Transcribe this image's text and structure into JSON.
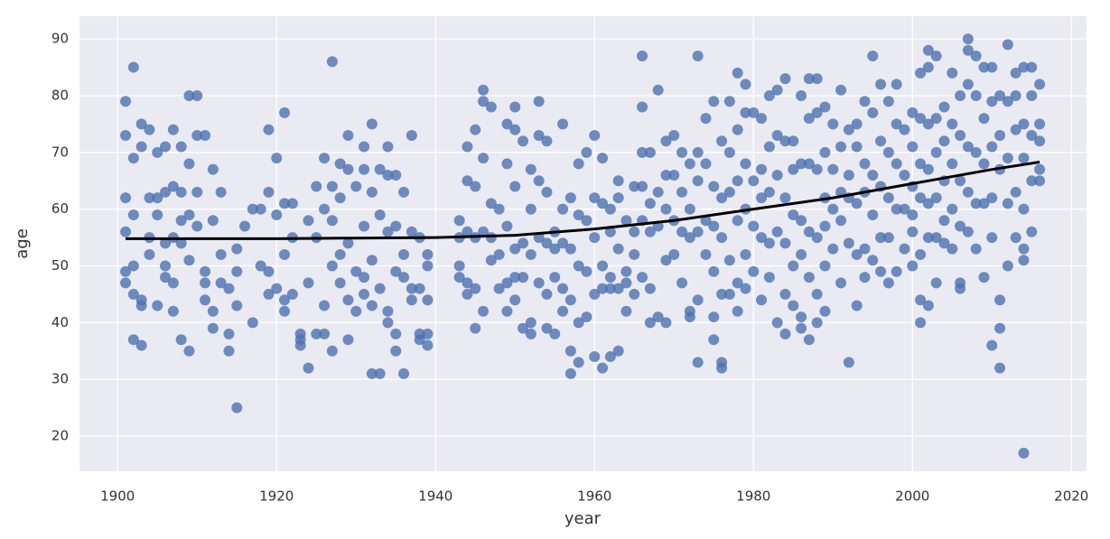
{
  "chart_data": {
    "type": "scatter",
    "x_label": "year",
    "y_label": "age",
    "xlim": [
      1895.2,
      2021.9
    ],
    "ylim": [
      13.8,
      94
    ],
    "xticks": [
      1900,
      1920,
      1940,
      1960,
      1980,
      2000,
      2020
    ],
    "yticks": [
      20,
      30,
      40,
      50,
      60,
      70,
      80,
      90
    ],
    "grid": true,
    "series": [
      {
        "type": "scatter",
        "color": "#4c72b0",
        "x": [
          1901,
          1901,
          1901,
          1901,
          1901,
          1901,
          1902,
          1902,
          1902,
          1902,
          1902,
          1902,
          1903,
          1903,
          1903,
          1903,
          1903,
          1904,
          1904,
          1904,
          1904,
          1905,
          1905,
          1905,
          1905,
          1906,
          1906,
          1906,
          1906,
          1906,
          1907,
          1907,
          1907,
          1907,
          1907,
          1908,
          1908,
          1908,
          1908,
          1908,
          1909,
          1909,
          1909,
          1909,
          1909,
          1910,
          1910,
          1910,
          1910,
          1911,
          1911,
          1911,
          1911,
          1912,
          1912,
          1912,
          1912,
          1913,
          1913,
          1913,
          1914,
          1914,
          1914,
          1915,
          1915,
          1915,
          1915,
          1916,
          1917,
          1917,
          1918,
          1918,
          1919,
          1919,
          1919,
          1919,
          1920,
          1920,
          1920,
          1921,
          1921,
          1921,
          1921,
          1921,
          1922,
          1922,
          1922,
          1923,
          1923,
          1923,
          1924,
          1924,
          1924,
          1925,
          1925,
          1925,
          1926,
          1926,
          1926,
          1926,
          1927,
          1927,
          1927,
          1927,
          1927,
          1928,
          1928,
          1928,
          1928,
          1929,
          1929,
          1929,
          1929,
          1929,
          1930,
          1930,
          1930,
          1931,
          1931,
          1931,
          1931,
          1931,
          1932,
          1932,
          1932,
          1932,
          1932,
          1933,
          1933,
          1933,
          1933,
          1934,
          1934,
          1934,
          1934,
          1934,
          1935,
          1935,
          1935,
          1935,
          1935,
          1936,
          1936,
          1936,
          1936,
          1937,
          1937,
          1937,
          1937,
          1938,
          1938,
          1938,
          1938,
          1939,
          1939,
          1939,
          1939,
          1939,
          1943,
          1943,
          1943,
          1943,
          1944,
          1944,
          1944,
          1944,
          1944,
          1945,
          1945,
          1945,
          1945,
          1945,
          1946,
          1946,
          1946,
          1946,
          1946,
          1947,
          1947,
          1947,
          1947,
          1948,
          1948,
          1948,
          1949,
          1949,
          1949,
          1949,
          1949,
          1950,
          1950,
          1950,
          1950,
          1950,
          1950,
          1951,
          1951,
          1951,
          1951,
          1952,
          1952,
          1952,
          1952,
          1952,
          1953,
          1953,
          1953,
          1953,
          1953,
          1954,
          1954,
          1954,
          1954,
          1954,
          1955,
          1955,
          1955,
          1955,
          1956,
          1956,
          1956,
          1956,
          1956,
          1957,
          1957,
          1957,
          1957,
          1957,
          1958,
          1958,
          1958,
          1958,
          1958,
          1959,
          1959,
          1959,
          1959,
          1960,
          1960,
          1960,
          1960,
          1960,
          1961,
          1961,
          1961,
          1961,
          1961,
          1962,
          1962,
          1962,
          1962,
          1962,
          1963,
          1963,
          1963,
          1963,
          1963,
          1964,
          1964,
          1964,
          1964,
          1965,
          1965,
          1965,
          1965,
          1966,
          1966,
          1966,
          1966,
          1966,
          1966,
          1967,
          1967,
          1967,
          1967,
          1967,
          1968,
          1968,
          1968,
          1968,
          1969,
          1969,
          1969,
          1969,
          1969,
          1970,
          1970,
          1970,
          1970,
          1971,
          1971,
          1971,
          1971,
          1972,
          1972,
          1972,
          1972,
          1972,
          1973,
          1973,
          1973,
          1973,
          1973,
          1973,
          1974,
          1974,
          1974,
          1974,
          1975,
          1975,
          1975,
          1975,
          1975,
          1975,
          1976,
          1976,
          1976,
          1976,
          1976,
          1976,
          1977,
          1977,
          1977,
          1977,
          1977,
          1978,
          1978,
          1978,
          1978,
          1978,
          1978,
          1979,
          1979,
          1979,
          1979,
          1979,
          1979,
          1980,
          1980,
          1980,
          1980,
          1981,
          1981,
          1981,
          1981,
          1981,
          1982,
          1982,
          1982,
          1982,
          1982,
          1983,
          1983,
          1983,
          1983,
          1983,
          1984,
          1984,
          1984,
          1984,
          1984,
          1984,
          1985,
          1985,
          1985,
          1985,
          1985,
          1986,
          1986,
          1986,
          1986,
          1986,
          1986,
          1987,
          1987,
          1987,
          1987,
          1987,
          1987,
          1988,
          1988,
          1988,
          1988,
          1988,
          1988,
          1989,
          1989,
          1989,
          1989,
          1989,
          1989,
          1990,
          1990,
          1990,
          1990,
          1991,
          1991,
          1991,
          1991,
          1991,
          1992,
          1992,
          1992,
          1992,
          1992,
          1993,
          1993,
          1993,
          1993,
          1993,
          1994,
          1994,
          1994,
          1994,
          1994,
          1995,
          1995,
          1995,
          1995,
          1995,
          1996,
          1996,
          1996,
          1996,
          1996,
          1997,
          1997,
          1997,
          1997,
          1997,
          1998,
          1998,
          1998,
          1998,
          1998,
          1999,
          1999,
          1999,
          1999,
          2000,
          2000,
          2000,
          2000,
          2000,
          2000,
          2001,
          2001,
          2001,
          2001,
          2001,
          2001,
          2001,
          2002,
          2002,
          2002,
          2002,
          2002,
          2002,
          2002,
          2003,
          2003,
          2003,
          2003,
          2003,
          2003,
          2004,
          2004,
          2004,
          2004,
          2004,
          2005,
          2005,
          2005,
          2005,
          2005,
          2006,
          2006,
          2006,
          2006,
          2006,
          2006,
          2007,
          2007,
          2007,
          2007,
          2007,
          2007,
          2008,
          2008,
          2008,
          2008,
          2008,
          2009,
          2009,
          2009,
          2009,
          2009,
          2010,
          2010,
          2010,
          2010,
          2010,
          2010,
          2011,
          2011,
          2011,
          2011,
          2011,
          2011,
          2012,
          2012,
          2012,
          2012,
          2012,
          2013,
          2013,
          2013,
          2013,
          2013,
          2014,
          2014,
          2014,
          2014,
          2014,
          2014,
          2014,
          2015,
          2015,
          2015,
          2015,
          2015,
          2016,
          2016,
          2016,
          2016,
          2016
        ],
        "values": [
          79,
          73,
          62,
          56,
          49,
          47,
          85,
          69,
          59,
          50,
          45,
          37,
          75,
          71,
          44,
          43,
          36,
          74,
          62,
          55,
          52,
          70,
          62,
          59,
          43,
          71,
          63,
          54,
          50,
          48,
          74,
          64,
          55,
          47,
          42,
          71,
          63,
          58,
          54,
          37,
          80,
          68,
          59,
          51,
          35,
          80,
          73,
          63,
          57,
          73,
          49,
          47,
          44,
          67,
          58,
          42,
          39,
          63,
          52,
          47,
          46,
          38,
          35,
          53,
          49,
          43,
          25,
          57,
          60,
          40,
          60,
          50,
          74,
          63,
          49,
          45,
          69,
          59,
          46,
          77,
          61,
          52,
          44,
          42,
          61,
          55,
          45,
          38,
          37,
          36,
          58,
          47,
          32,
          64,
          55,
          38,
          69,
          60,
          43,
          38,
          86,
          64,
          58,
          50,
          35,
          68,
          62,
          52,
          47,
          73,
          67,
          54,
          44,
          37,
          64,
          49,
          42,
          71,
          67,
          57,
          48,
          45,
          75,
          63,
          51,
          43,
          31,
          67,
          59,
          46,
          31,
          71,
          66,
          56,
          42,
          40,
          66,
          57,
          49,
          38,
          35,
          63,
          52,
          48,
          31,
          73,
          56,
          46,
          44,
          55,
          46,
          38,
          37,
          52,
          50,
          44,
          38,
          36,
          58,
          55,
          50,
          48,
          71,
          65,
          56,
          47,
          45,
          74,
          64,
          55,
          46,
          39,
          81,
          79,
          69,
          56,
          42,
          78,
          61,
          55,
          51,
          60,
          52,
          46,
          75,
          68,
          57,
          47,
          42,
          78,
          74,
          64,
          53,
          48,
          44,
          72,
          54,
          48,
          39,
          67,
          60,
          52,
          38,
          40,
          79,
          73,
          65,
          55,
          47,
          72,
          63,
          54,
          45,
          39,
          56,
          53,
          48,
          38,
          75,
          60,
          54,
          46,
          42,
          62,
          53,
          44,
          35,
          31,
          68,
          59,
          50,
          40,
          33,
          70,
          58,
          49,
          41,
          73,
          62,
          55,
          45,
          34,
          69,
          61,
          50,
          46,
          32,
          60,
          56,
          48,
          46,
          34,
          65,
          62,
          53,
          46,
          35,
          58,
          49,
          47,
          42,
          64,
          56,
          52,
          45,
          87,
          78,
          70,
          64,
          58,
          48,
          70,
          61,
          56,
          46,
          40,
          81,
          63,
          57,
          41,
          72,
          66,
          60,
          51,
          40,
          73,
          66,
          58,
          52,
          70,
          63,
          56,
          47,
          68,
          60,
          55,
          42,
          41,
          87,
          70,
          65,
          56,
          44,
          33,
          76,
          68,
          58,
          52,
          79,
          64,
          57,
          49,
          41,
          37,
          72,
          62,
          55,
          45,
          33,
          32,
          79,
          70,
          63,
          51,
          45,
          84,
          74,
          65,
          58,
          47,
          42,
          82,
          77,
          68,
          60,
          52,
          46,
          77,
          65,
          57,
          49,
          76,
          67,
          62,
          55,
          44,
          80,
          71,
          63,
          54,
          48,
          81,
          73,
          66,
          56,
          40,
          83,
          72,
          62,
          54,
          45,
          38,
          72,
          67,
          59,
          50,
          43,
          80,
          68,
          58,
          52,
          41,
          39,
          83,
          76,
          68,
          56,
          48,
          37,
          83,
          77,
          67,
          55,
          45,
          40,
          78,
          70,
          62,
          57,
          50,
          42,
          75,
          67,
          60,
          53,
          81,
          71,
          63,
          58,
          47,
          74,
          66,
          62,
          54,
          33,
          75,
          71,
          61,
          52,
          43,
          79,
          68,
          63,
          53,
          48,
          87,
          77,
          66,
          59,
          51,
          82,
          72,
          64,
          55,
          49,
          79,
          70,
          62,
          55,
          47,
          82,
          75,
          68,
          60,
          49,
          74,
          66,
          60,
          53,
          77,
          71,
          64,
          59,
          56,
          50,
          84,
          76,
          68,
          62,
          52,
          44,
          40,
          88,
          85,
          75,
          67,
          61,
          55,
          43,
          87,
          76,
          70,
          62,
          55,
          47,
          78,
          72,
          65,
          58,
          54,
          84,
          75,
          68,
          60,
          53,
          80,
          73,
          65,
          57,
          47,
          46,
          90,
          88,
          82,
          71,
          63,
          56,
          87,
          80,
          70,
          61,
          53,
          85,
          76,
          68,
          61,
          48,
          85,
          79,
          71,
          62,
          55,
          36,
          80,
          73,
          67,
          44,
          39,
          32,
          89,
          79,
          69,
          61,
          50,
          84,
          80,
          74,
          63,
          55,
          85,
          75,
          69,
          60,
          53,
          51,
          17,
          85,
          80,
          73,
          65,
          56,
          82,
          75,
          72,
          67,
          65
        ]
      },
      {
        "type": "line",
        "color": "#000000",
        "x": [
          1901,
          1910,
          1920,
          1930,
          1940,
          1950,
          1960,
          1970,
          1980,
          1990,
          2000,
          2010,
          2016
        ],
        "values": [
          54.8,
          54.8,
          54.8,
          54.9,
          55.0,
          55.4,
          56.5,
          58.0,
          60.0,
          62.0,
          64.5,
          67.0,
          68.3
        ]
      }
    ]
  }
}
